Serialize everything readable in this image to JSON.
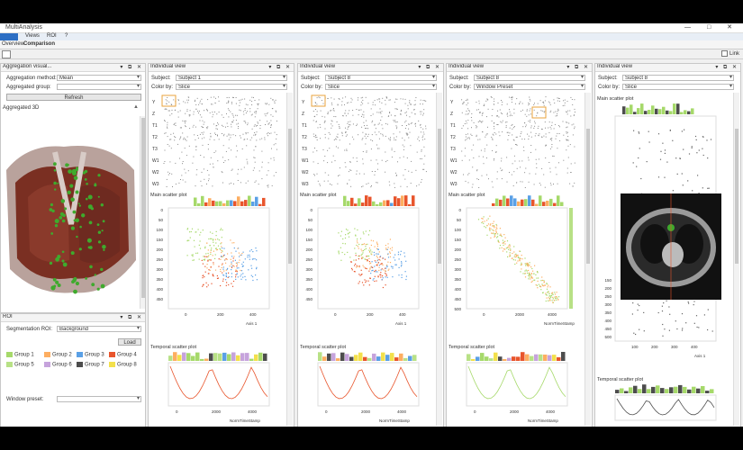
{
  "window": {
    "title": "MultiAnalysis",
    "buttons": "— □ ✕"
  },
  "menu": {
    "items": [
      "Views",
      "ROI",
      "?"
    ]
  },
  "tabs": {
    "overview": "Overview",
    "comparison": "Comparison"
  },
  "toolbar": {
    "link_label": "Link"
  },
  "aggregation": {
    "panel_title": "Aggregation visual...",
    "method_label": "Aggregation method:",
    "method_value": "Mean",
    "group_label": "Aggregated group:",
    "group_value": "",
    "refresh_label": "Refresh",
    "section_title": "Aggregated 3D"
  },
  "roi": {
    "panel_title": "ROI",
    "seg_label": "Segmentation ROI:",
    "seg_value": "Background",
    "load_label": "Load",
    "groups": [
      {
        "name": "Group 1",
        "color": "#a6d96a"
      },
      {
        "name": "Group 2",
        "color": "#fdae61"
      },
      {
        "name": "Group 3",
        "color": "#5aa0e6"
      },
      {
        "name": "Group 4",
        "color": "#e8552c"
      },
      {
        "name": "Group 5",
        "color": "#b8e186"
      },
      {
        "name": "Group 6",
        "color": "#c6a3dc"
      },
      {
        "name": "Group 7",
        "color": "#4d4d4d"
      },
      {
        "name": "Group 8",
        "color": "#f3e04b"
      }
    ],
    "window_label": "Window preset:",
    "window_value": ""
  },
  "views": [
    {
      "title": "Individual view",
      "subject_label": "Subject:",
      "subject_value": "Subject 1",
      "color_label": "Color by:",
      "color_value": "Slice",
      "spm_title": "",
      "main_title": "Main scatter plot",
      "temporal_title": "Temporal scatter plot",
      "x_axis": "Axis 1",
      "t_axis": "NormTimeStamp",
      "y_ticks": [
        "0",
        "50",
        "100",
        "150",
        "200",
        "250",
        "300",
        "350",
        "400",
        "450"
      ],
      "x_ticks": [
        "0",
        "200",
        "400"
      ],
      "t_ticks": [
        "0",
        "2000",
        "4000"
      ]
    },
    {
      "title": "Individual view",
      "subject_label": "Subject:",
      "subject_value": "Subject 8",
      "color_label": "Color by:",
      "color_value": "Slice",
      "spm_title": "",
      "main_title": "Main scatter plot",
      "temporal_title": "Temporal scatter plot",
      "x_axis": "Axis 1",
      "t_axis": "NormTimeStamp",
      "y_ticks": [
        "0",
        "50",
        "100",
        "150",
        "200",
        "250",
        "300",
        "350",
        "400",
        "450"
      ],
      "x_ticks": [
        "0",
        "200",
        "400"
      ],
      "t_ticks": [
        "0",
        "2000",
        "4000"
      ]
    },
    {
      "title": "Individual view",
      "subject_label": "Subject:",
      "subject_value": "Subject 8",
      "color_label": "Color by:",
      "color_value": "Window Preset",
      "spm_title": "",
      "main_title": "Main scatter plot",
      "temporal_title": "Temporal scatter plot",
      "x_axis": "NormTimeStamp",
      "t_axis": "NormTimeStamp",
      "y_ticks": [
        "0",
        "50",
        "100",
        "150",
        "200",
        "250",
        "300",
        "350",
        "400",
        "450",
        "500"
      ],
      "x_ticks": [
        "0",
        "2000",
        "4000"
      ],
      "t_ticks": [
        "0",
        "2000",
        "4000"
      ]
    },
    {
      "title": "Individual view",
      "subject_label": "Subject:",
      "subject_value": "Subject 8",
      "color_label": "Color by:",
      "color_value": "Slice",
      "spm_title": "Main scatter plot",
      "main_title": "",
      "temporal_title": "Temporal scatter plot",
      "x_axis": "Axis 1",
      "t_axis": "",
      "y_ticks": [
        "150",
        "200",
        "250",
        "300",
        "350",
        "400",
        "450",
        "500"
      ],
      "x_ticks": [
        "100",
        "200",
        "300",
        "400"
      ],
      "t_ticks": [
        "0",
        "2000",
        "4000"
      ]
    }
  ],
  "spm_labels": [
    "Y",
    "Z",
    "T1",
    "T2",
    "T3",
    "W1",
    "W2",
    "W3"
  ],
  "colors": {
    "accent": "#e8a33c",
    "blue": "#2d6fc4"
  }
}
